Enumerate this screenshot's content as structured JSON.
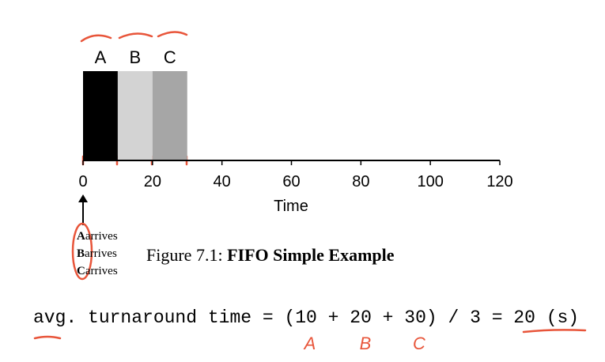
{
  "chart_data": {
    "type": "gantt",
    "categories": [
      "A",
      "B",
      "C"
    ],
    "starts": [
      0,
      10,
      20
    ],
    "ends": [
      10,
      20,
      30
    ],
    "colors": [
      "#000000",
      "#d3d3d3",
      "#a6a6a6"
    ],
    "xlim": [
      0,
      120
    ],
    "xticks": [
      0,
      20,
      40,
      60,
      80,
      100,
      120
    ],
    "xlabel": "Time"
  },
  "arrivals": [
    {
      "job": "A",
      "text": "arrives"
    },
    {
      "job": "B",
      "text": "arrives"
    },
    {
      "job": "C",
      "text": "arrives"
    }
  ],
  "caption": {
    "number": "Figure 7.1:",
    "title": "FIFO Simple Example"
  },
  "formula": "avg. turnaround time = (10 + 20 + 30) / 3 = 20 (s)",
  "handwritten": [
    "A",
    "B",
    "C"
  ]
}
